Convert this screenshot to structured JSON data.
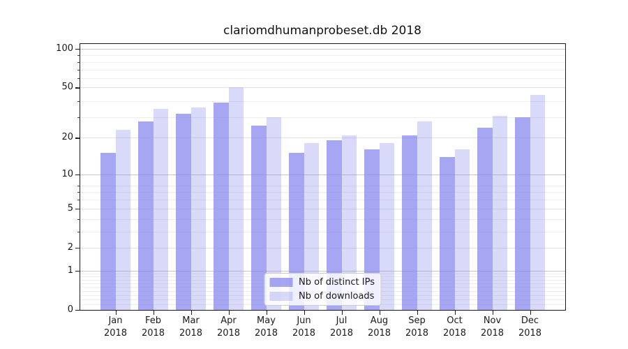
{
  "title": "clariomdhumanprobeset.db 2018",
  "chart_data": {
    "type": "bar",
    "title": "clariomdhumanprobeset.db 2018",
    "categories": [
      "Jan",
      "Feb",
      "Mar",
      "Apr",
      "May",
      "Jun",
      "Jul",
      "Aug",
      "Sep",
      "Oct",
      "Nov",
      "Dec"
    ],
    "x_tick_sublabel": "2018",
    "series": [
      {
        "name": "Nb of distinct IPs",
        "color": "rgba(128,128,238,0.7)",
        "values": [
          15,
          27,
          31,
          38,
          25,
          15,
          19,
          16,
          21,
          14,
          24,
          29
        ]
      },
      {
        "name": "Nb of downloads",
        "color": "rgba(128,128,238,0.3)",
        "values": [
          23,
          34,
          35,
          50,
          29,
          18,
          21,
          18,
          27,
          16,
          30,
          44
        ]
      }
    ],
    "yscale": "log10(value+1)",
    "yticks": [
      0,
      1,
      2,
      5,
      10,
      20,
      50,
      100
    ],
    "ylim": [
      0,
      109
    ],
    "xlabel": "",
    "ylabel": "",
    "grid": "horizontal",
    "legend_position": "lower center"
  },
  "colors": {
    "bar_dark": "rgba(128,128,238,0.7)",
    "bar_light": "rgba(128,128,238,0.3)",
    "bar_base": "#8080ee",
    "grid_major": "#c6c6c6",
    "grid_minor": "#ededed",
    "axis": "#1a1a1a",
    "legend_border": "#cccccc",
    "background": "#ffffff"
  }
}
